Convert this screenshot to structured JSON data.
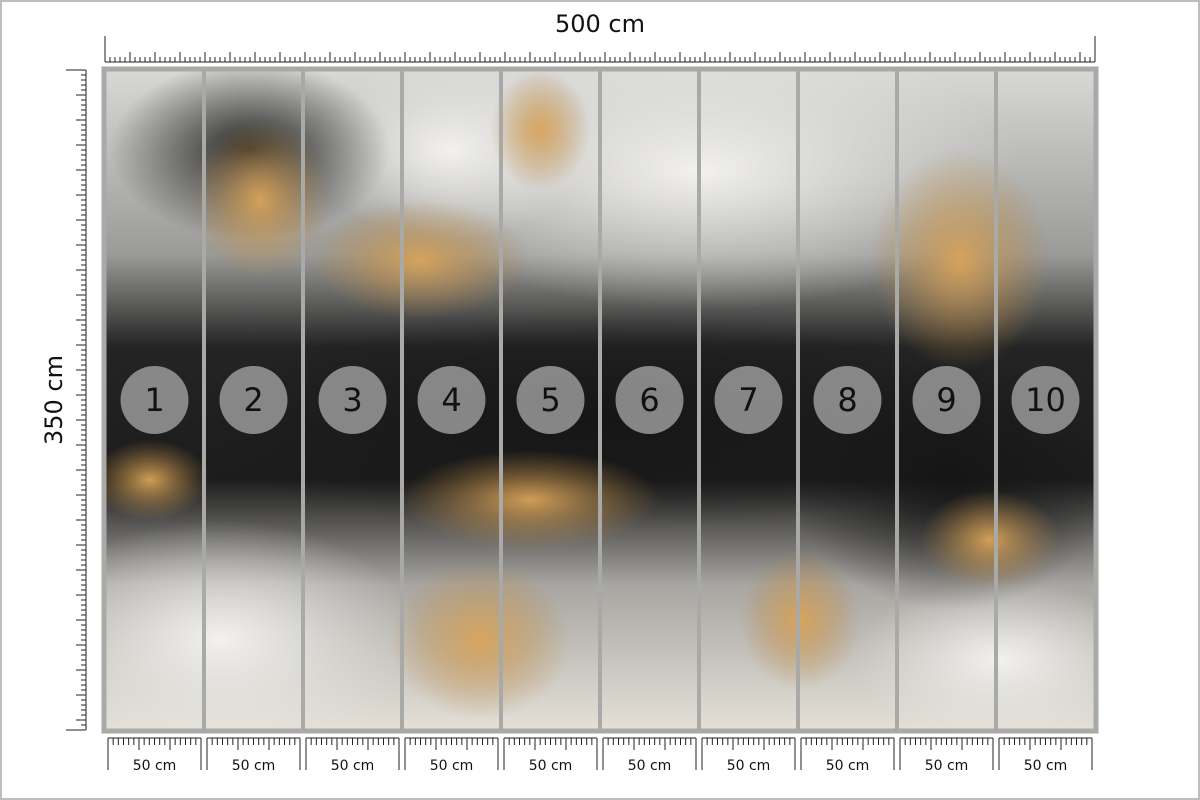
{
  "header": {
    "width": "500 cm",
    "height": "350 cm"
  },
  "panels": [
    {
      "number": "1",
      "width": "50 cm"
    },
    {
      "number": "2",
      "width": "50 cm"
    },
    {
      "number": "3",
      "width": "50 cm"
    },
    {
      "number": "4",
      "width": "50 cm"
    },
    {
      "number": "5",
      "width": "50 cm"
    },
    {
      "number": "6",
      "width": "50 cm"
    },
    {
      "number": "7",
      "width": "50 cm"
    },
    {
      "number": "8",
      "width": "50 cm"
    },
    {
      "number": "9",
      "width": "50 cm"
    },
    {
      "number": "10",
      "width": "50 cm"
    }
  ]
}
